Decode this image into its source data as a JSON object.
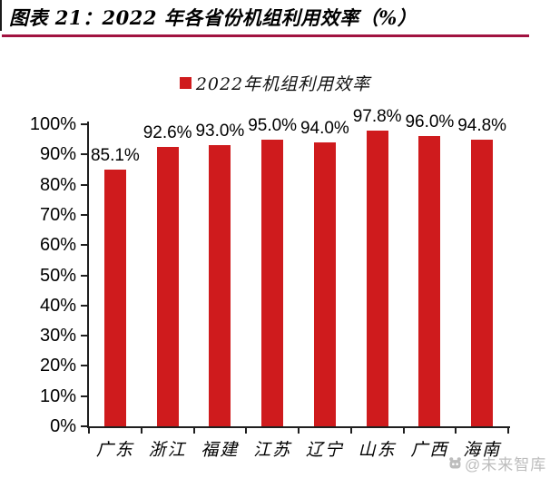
{
  "header": {
    "title": "图表 21：2022 年各省份机组利用效率（%）"
  },
  "chart_data": {
    "type": "bar",
    "title": "",
    "legend": "2022年机组利用效率",
    "legend_position": "top-center",
    "categories": [
      "广东",
      "浙江",
      "福建",
      "江苏",
      "辽宁",
      "山东",
      "广西",
      "海南"
    ],
    "series": [
      {
        "name": "2022年机组利用效率",
        "values": [
          85.1,
          92.6,
          93.0,
          95.0,
          94.0,
          97.8,
          96.0,
          94.8
        ]
      }
    ],
    "data_labels": [
      "85.1%",
      "92.6%",
      "93.0%",
      "95.0%",
      "94.0%",
      "97.8%",
      "96.0%",
      "94.8%"
    ],
    "xlabel": "",
    "ylabel": "",
    "ylim": [
      0,
      100
    ],
    "ytick_step": 10,
    "ytick_labels": [
      "0%",
      "10%",
      "20%",
      "30%",
      "40%",
      "50%",
      "60%",
      "70%",
      "80%",
      "90%",
      "100%"
    ],
    "grid": false
  },
  "watermark": {
    "text": "@未来智库",
    "icon": "brand-logo-icon"
  },
  "colors": {
    "bar": "#CF1B1D",
    "title_underline": "#A11240",
    "axis": "#1F1F1F",
    "text": "#000000",
    "watermark": "#BDBDBD"
  }
}
